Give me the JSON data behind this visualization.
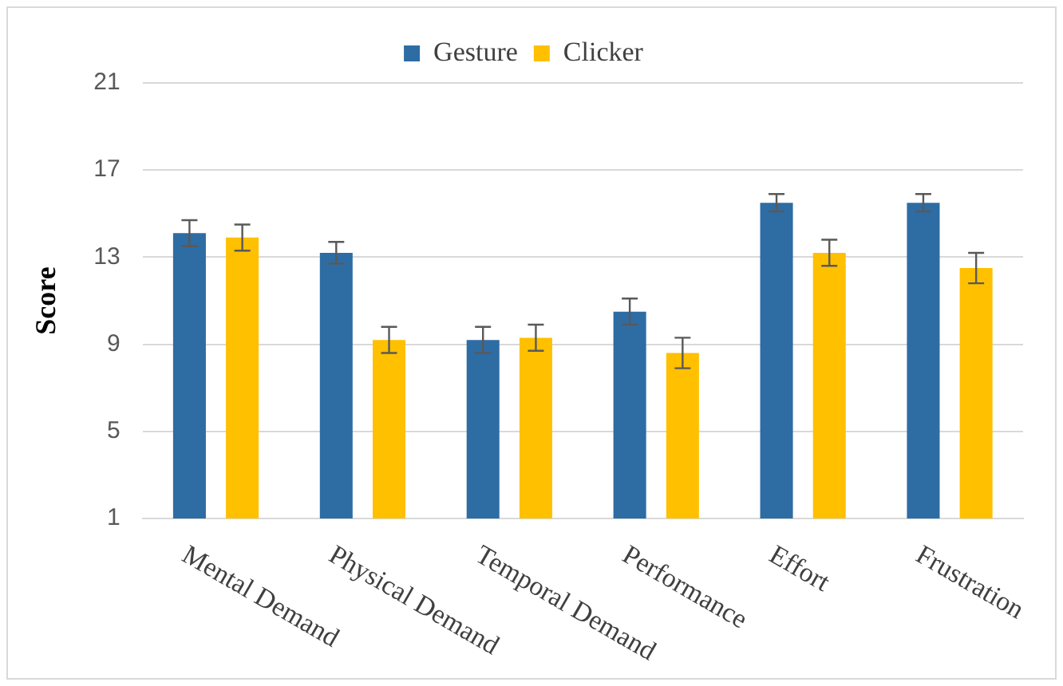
{
  "chart_data": {
    "type": "bar",
    "ylabel": "Score",
    "categories": [
      "Mental Demand",
      "Physical Demand",
      "Temporal Demand",
      "Performance",
      "Effort",
      "Frustration"
    ],
    "series": [
      {
        "name": "Gesture",
        "color": "#2e6ca4",
        "values": [
          14.1,
          13.2,
          9.2,
          10.5,
          15.5,
          15.5
        ],
        "errors": [
          0.6,
          0.5,
          0.6,
          0.6,
          0.4,
          0.4
        ]
      },
      {
        "name": "Clicker",
        "color": "#ffc000",
        "values": [
          13.9,
          9.2,
          9.3,
          8.6,
          13.2,
          12.5
        ],
        "errors": [
          0.6,
          0.6,
          0.6,
          0.7,
          0.6,
          0.7
        ]
      }
    ],
    "ylim": [
      1,
      21
    ],
    "yticks": [
      1,
      5,
      9,
      13,
      17,
      21
    ],
    "grid": "y",
    "legend": "top"
  }
}
